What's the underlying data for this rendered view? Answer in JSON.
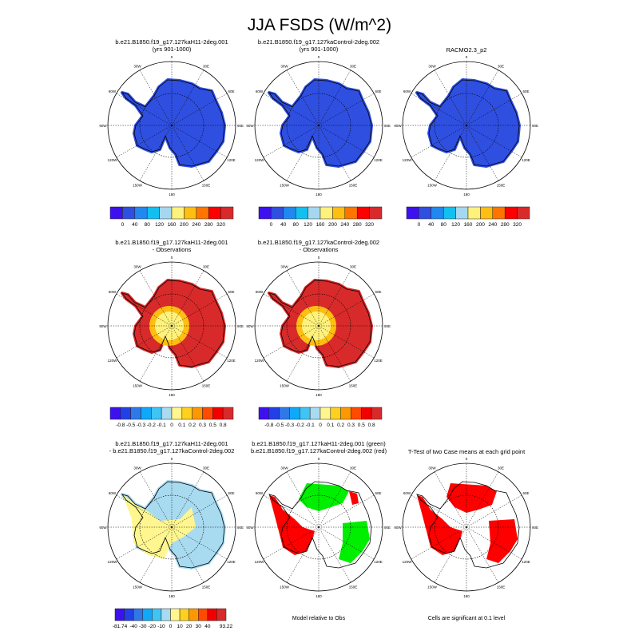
{
  "title": "JJA FSDS (W/m^2)",
  "graticule_labels": [
    "0",
    "30E",
    "60E",
    "90E",
    "120E",
    "150E",
    "180",
    "150W",
    "120W",
    "90W",
    "60W",
    "30W"
  ],
  "palettes": {
    "abs": [
      "#3d10f0",
      "#2f4fe0",
      "#2188f0",
      "#12c0f0",
      "#a5d8f0",
      "#fff27c",
      "#ffbe12",
      "#ff7500",
      "#ff0000",
      "#d82a2a"
    ],
    "diff": [
      "#3d10f0",
      "#2240e8",
      "#2f78e8",
      "#10a8f8",
      "#40c4f4",
      "#a8daf0",
      "#fff690",
      "#ffd020",
      "#ff9800",
      "#ff4a00",
      "#f20000",
      "#d82a2a"
    ]
  },
  "panels": [
    {
      "title1": "b.e21.B1850.f19_g17.127kaH11-2deg.001",
      "title2": "(yrs 901-1000)",
      "fill": "abs1"
    },
    {
      "title1": "b.e21.B1850.f19_g17.127kaControl-2deg.002",
      "title2": "(yrs 901-1000)",
      "fill": "abs1"
    },
    {
      "title1": "",
      "title2": "RACMO2.3_p2",
      "fill": "abs1"
    },
    {
      "title1": "b.e21.B1850.f19_g17.127kaH11-2deg.001",
      "title2": "- Observations",
      "fill": "obs"
    },
    {
      "title1": "b.e21.B1850.f19_g17.127kaControl-2deg.002",
      "title2": "- Observations",
      "fill": "obs"
    },
    {
      "title1": "b.e21.B1850.f19_g17.127kaH11-2deg.001",
      "title2": "- b.e21.B1850.f19_g17.127kaControl-2deg.002",
      "fill": "diff"
    },
    {
      "title1": "b.e21.B1850.f19_g17.127kaH11-2deg.001 (green)",
      "title2": "b.e21.B1850.f19_g17.127kaControl-2deg.002 (red)",
      "fill": "greenred"
    },
    {
      "title1": "",
      "title2": "T-Test of two Case means at each grid point",
      "fill": "ttest"
    }
  ],
  "colorbars": [
    {
      "palette": "abs",
      "labels": [
        "0",
        "40",
        "80",
        "120",
        "160",
        "200",
        "240",
        "280",
        "320"
      ]
    },
    {
      "palette": "abs",
      "labels": [
        "0",
        "40",
        "80",
        "120",
        "160",
        "200",
        "240",
        "280",
        "320"
      ]
    },
    {
      "palette": "abs",
      "labels": [
        "0",
        "40",
        "80",
        "120",
        "160",
        "200",
        "240",
        "280",
        "320"
      ]
    },
    {
      "palette": "diff",
      "labels": [
        "-0.8",
        "-0.5",
        "-0.3",
        "-0.2",
        "-0.1",
        "0",
        "0.1",
        "0.2",
        "0.3",
        "0.5",
        "0.8"
      ]
    },
    {
      "palette": "diff",
      "labels": [
        "-0.8",
        "-0.5",
        "-0.3",
        "-0.2",
        "-0.1",
        "0",
        "0.1",
        "0.2",
        "0.3",
        "0.5",
        "0.8"
      ]
    },
    {
      "palette": "diff",
      "labels": [
        "-40",
        "-30",
        "-20",
        "-10",
        "0",
        "10",
        "20",
        "30",
        "40"
      ],
      "min_label": "-81.74",
      "max_label": "93.22"
    }
  ],
  "notes": {
    "model_relative": "Model relative to Obs",
    "significance": "Cells are significant at 0.1 level"
  }
}
